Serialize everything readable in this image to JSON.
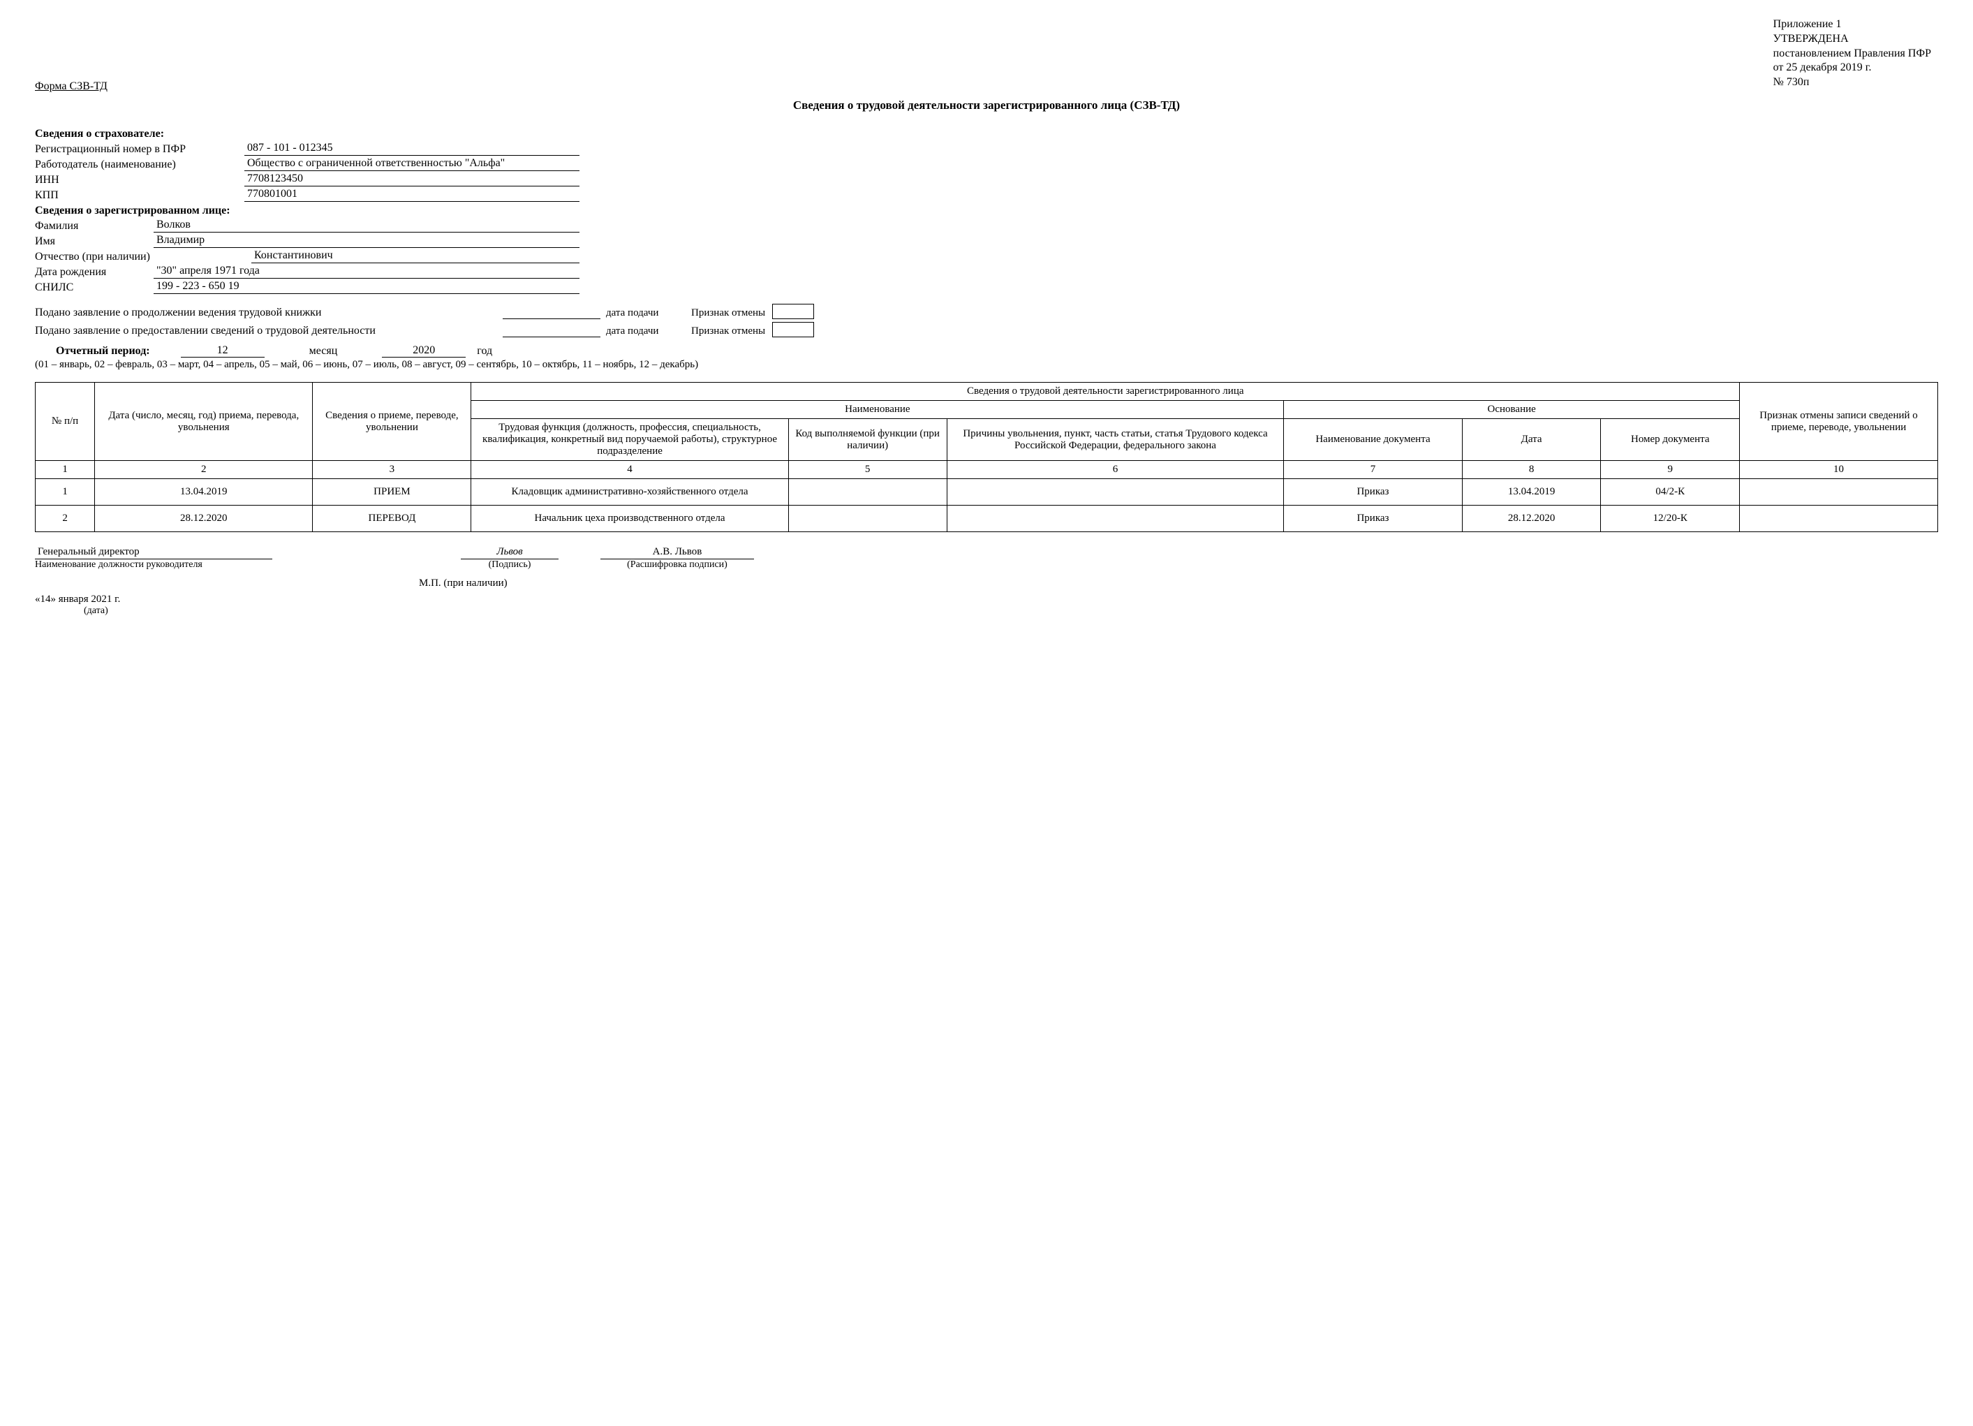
{
  "approval": {
    "l1": "Приложение 1",
    "l2": "УТВЕРЖДЕНА",
    "l3": "постановлением Правления ПФР",
    "l4": "от 25 декабря 2019 г.",
    "l5": "№ 730п"
  },
  "form_code": "Форма СЗВ-ТД",
  "title": "Сведения о трудовой деятельности зарегистрированного лица (СЗВ-ТД)",
  "insurer_header": "Сведения о страхователе:",
  "insurer": {
    "reg_label": "Регистрационный номер в ПФР",
    "reg_value": "087 - 101 - 012345",
    "emp_label": "Работодатель (наименование)",
    "emp_value": "Общество с ограниченной ответственностью \"Альфа\"",
    "inn_label": "ИНН",
    "inn_value": "7708123450",
    "kpp_label": "КПП",
    "kpp_value": "770801001"
  },
  "person_header": "Сведения о зарегистрированном лице:",
  "person": {
    "last_label": "Фамилия",
    "last_value": "Волков",
    "first_label": "Имя",
    "first_value": "Владимир",
    "mid_label": "Отчество (при наличии)",
    "mid_value": "Константинович",
    "dob_label": "Дата рождения",
    "dob_value": "\"30\"  апреля 1971 года",
    "snils_label": "СНИЛС",
    "snils_value": "199 - 223 - 650 19"
  },
  "statements": {
    "s1": "Подано заявление о продолжении ведения трудовой книжки",
    "s2": "Подано заявление о предоставлении сведений о трудовой деятельности",
    "date_label": "дата подачи",
    "flag_label": "Признак отмены"
  },
  "period": {
    "label": "Отчетный период:",
    "month_val": "12",
    "month_word": "месяц",
    "year_val": "2020",
    "year_word": "год",
    "legend": "(01 – январь, 02 – февраль, 03 – март, 04 – апрель, 05 – май, 06 – июнь, 07 – июль, 08 – август, 09 – сентябрь, 10 – октябрь, 11 – ноябрь, 12 – декабрь)"
  },
  "table": {
    "top_header": "Сведения о трудовой деятельности зарегистрированного лица",
    "name_header": "Наименование",
    "basis_header": "Основание",
    "h1": "№ п/п",
    "h2": "Дата (число,  месяц, год) приема, перевода, увольнения",
    "h3": "Сведения о приеме, переводе, увольнении",
    "h4": "Трудовая функция (должность, профессия, специальность, квалификация, конкретный вид поручаемой работы), структурное подразделение",
    "h5": "Код выполняемой функции (при наличии)",
    "h6": "Причины увольнения, пункт, часть статьи, статья Трудового кодекса Российской Федерации, федерального закона",
    "h7": "Наименование документа",
    "h8": "Дата",
    "h9": "Номер документа",
    "h10": "Признак отмены записи сведений о приеме, переводе, увольнении",
    "n1": "1",
    "n2": "2",
    "n3": "3",
    "n4": "4",
    "n5": "5",
    "n6": "6",
    "n7": "7",
    "n8": "8",
    "n9": "9",
    "n10": "10",
    "rows": [
      {
        "n": "1",
        "date": "13.04.2019",
        "type": "ПРИЕМ",
        "func": "Кладовщик административно-хозяйственного отдела",
        "code": "",
        "reason": "",
        "doc": "Приказ",
        "ddate": "13.04.2019",
        "dnum": "04/2-К",
        "cancel": ""
      },
      {
        "n": "2",
        "date": "28.12.2020",
        "type": "ПЕРЕВОД",
        "func": "Начальник цеха производственного отдела",
        "code": "",
        "reason": "",
        "doc": "Приказ",
        "ddate": "28.12.2020",
        "dnum": "12/20-К",
        "cancel": ""
      }
    ]
  },
  "sign": {
    "pos_val": "Генеральный директор",
    "pos_cap": "Наименование должности руководителя",
    "sig_val": "Львов",
    "sig_cap": "(Подпись)",
    "name_val": "А.В. Львов",
    "name_cap": "(Расшифровка подписи)",
    "mp": "М.П. (при наличии)",
    "date_val": "«14» января 2021 г.",
    "date_cap": "(дата)"
  }
}
